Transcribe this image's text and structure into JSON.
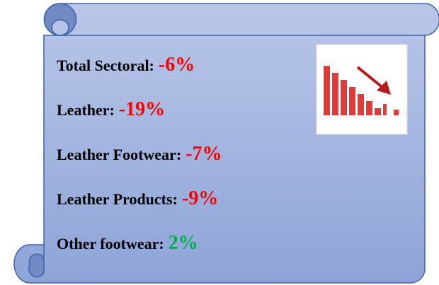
{
  "items": [
    {
      "label": "Total Sectoral:",
      "value": "-6%",
      "color": "#ff0000"
    },
    {
      "label": "Leather:",
      "value": "-19%",
      "color": "#ff0000"
    },
    {
      "label": "Leather Footwear:",
      "value": "-7%",
      "color": "#ff0000"
    },
    {
      "label": "Leather Products:",
      "value": "-9%",
      "color": "#ff0000"
    },
    {
      "label": "Other footwear:",
      "value": "2%",
      "color": "#00b050"
    }
  ]
}
